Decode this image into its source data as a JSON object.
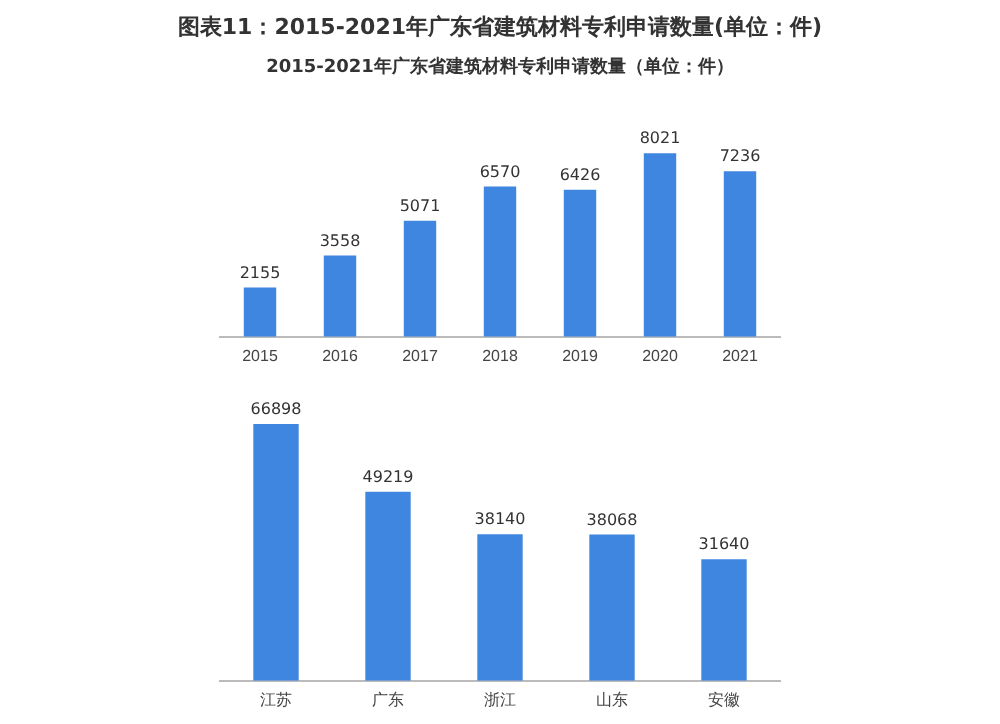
{
  "chart_data": [
    {
      "type": "bar",
      "title": "图表11：2015-2021年广东省建筑材料专利申请数量(单位：件)",
      "subtitle": "2015-2021年广东省建筑材料专利申请数量（单位：件）",
      "categories": [
        "2015",
        "2016",
        "2017",
        "2018",
        "2019",
        "2020",
        "2021"
      ],
      "values": [
        2155,
        3558,
        5071,
        6570,
        6426,
        8021,
        7236
      ],
      "color": "#3f86e0",
      "data_labels": true,
      "grid": false,
      "legend": false,
      "tick_labels": "x"
    },
    {
      "type": "bar",
      "categories": [
        "江苏",
        "广东",
        "浙江",
        "山东",
        "安徽"
      ],
      "values": [
        66898,
        49219,
        38140,
        38068,
        31640
      ],
      "color": "#3f86e0",
      "data_labels": true,
      "grid": false,
      "legend": false,
      "tick_labels": "x"
    }
  ]
}
